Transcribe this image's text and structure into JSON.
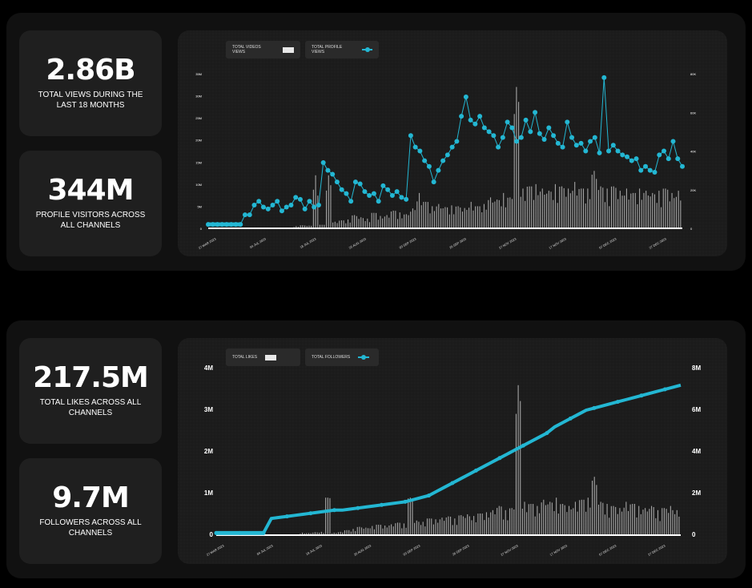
{
  "stats": {
    "total_views": {
      "value": "2.86B",
      "label": "TOTAL VIEWS DURING THE LAST  18 MONTHS"
    },
    "profile_visitors": {
      "value": "344M",
      "label": "PROFILE VISITORS ACROSS ALL CHANNELS"
    },
    "total_likes": {
      "value": "217.5M",
      "label": "TOTAL LIKES ACROSS ALL CHANNELS"
    },
    "followers": {
      "value": "9.7M",
      "label": "FOLLOWERS ACROSS ALL CHANNELS"
    }
  },
  "colors": {
    "accent": "#23b7d3",
    "bar": "#bdbdbd",
    "panel": "#111111",
    "card": "#1f1f1f"
  },
  "chart_data": [
    {
      "type": "bar",
      "legend": [
        "TOTAL VIDEOS VIEWS",
        "TOTAL PROFILE VIEWS"
      ],
      "legend_placement": "top-left",
      "grid": true,
      "y_ticks_left": [
        "35M",
        "30M",
        "25M",
        "20M",
        "15M",
        "10M",
        "5M",
        "0"
      ],
      "ylim_left": [
        0,
        35000000
      ],
      "y_ticks_right": [
        "80K",
        "60K",
        "40K",
        "20K",
        "0"
      ],
      "ylim_right": [
        0,
        80000
      ],
      "x_ticks": [
        "27 MAR 2023",
        "04 JUL 2023",
        "18 JUL 2023",
        "25 AUG 2023",
        "03 SEP 2023",
        "26 SEP 2023",
        "27 NOV 2023",
        "17 NOV 2023",
        "07 DEC 2023",
        "27 DEC 2023"
      ],
      "series": [
        {
          "name": "TOTAL VIDEOS VIEWS",
          "kind": "bar",
          "axis": "left",
          "values": [
            500000,
            700000,
            600000,
            12000000,
            800000,
            12000000,
            1500000,
            1800000,
            2000000,
            3000000,
            2500000,
            2200000,
            3500000,
            2800000,
            3000000,
            4000000,
            3600000,
            3200000,
            4500000,
            8000000,
            6000000,
            5000000,
            5500000,
            4800000,
            5200000,
            5000000,
            4600000,
            6000000,
            5000000,
            5500000,
            7000000,
            6500000,
            8000000,
            7000000,
            32000000,
            9000000,
            9500000,
            10000000,
            9000000,
            8500000,
            10000000,
            9500000,
            9000000,
            10500000,
            9000000,
            9000000,
            13000000,
            9500000,
            9000000,
            9500000,
            8500000,
            9000000,
            8000000,
            9000000,
            8500000,
            8000000,
            8500000,
            9000000,
            8000000,
            8500000
          ]
        },
        {
          "name": "TOTAL PROFILE VIEWS",
          "kind": "line",
          "axis": "right",
          "values": [
            2000,
            2000,
            2000,
            2000,
            2000,
            2000,
            2000,
            2000,
            7000,
            7000,
            12000,
            14000,
            11000,
            10000,
            12000,
            14000,
            9000,
            11000,
            12000,
            16000,
            15000,
            10000,
            14000,
            11000,
            12000,
            34000,
            30000,
            28000,
            24000,
            20000,
            18000,
            14000,
            24000,
            23000,
            19000,
            17000,
            18000,
            14000,
            22000,
            20000,
            17000,
            19000,
            16000,
            15000,
            48000,
            42000,
            40000,
            35000,
            32000,
            24000,
            30000,
            35000,
            38000,
            42000,
            45000,
            58000,
            68000,
            56000,
            54000,
            58000,
            52000,
            50000,
            48000,
            42000,
            47000,
            55000,
            52000,
            45000,
            47000,
            56000,
            50000,
            60000,
            49000,
            46000,
            52000,
            48000,
            44000,
            42000,
            55000,
            47000,
            43000,
            44000,
            40000,
            45000,
            47000,
            39000,
            78000,
            40000,
            43000,
            40000,
            38000,
            37000,
            35000,
            36000,
            30000,
            32000,
            30000,
            29000,
            38000,
            40000,
            36000,
            45000,
            36000,
            32000
          ]
        }
      ]
    },
    {
      "type": "bar",
      "legend": [
        "TOTAL LIKES",
        "TOTAL FOLLOWERS"
      ],
      "legend_placement": "top-left",
      "grid": true,
      "y_ticks_left": [
        "4M",
        "3M",
        "2M",
        "1M",
        "0"
      ],
      "ylim_left": [
        0,
        4000000
      ],
      "y_ticks_right": [
        "8M",
        "6M",
        "4M",
        "2M",
        "0"
      ],
      "ylim_right": [
        0,
        8000000
      ],
      "x_ticks": [
        "27 MAR 2023",
        "04 JUL 2023",
        "18 JUL 2023",
        "25 AUG 2023",
        "03 SEP 2023",
        "26 SEP 2023",
        "27 NOV 2023",
        "17 NOV 2023",
        "07 DEC 2023",
        "27 DEC 2023"
      ],
      "series": [
        {
          "name": "TOTAL LIKES",
          "kind": "bar",
          "axis": "left",
          "values": [
            60000,
            50000,
            70000,
            80000,
            900000,
            60000,
            80000,
            120000,
            150000,
            200000,
            180000,
            220000,
            250000,
            230000,
            260000,
            300000,
            280000,
            900000,
            350000,
            320000,
            400000,
            380000,
            420000,
            450000,
            400000,
            480000,
            500000,
            460000,
            520000,
            550000,
            600000,
            700000,
            600000,
            650000,
            3600000,
            800000,
            750000,
            700000,
            850000,
            800000,
            900000,
            750000,
            700000,
            800000,
            850000,
            900000,
            1400000,
            800000,
            750000,
            700000,
            650000,
            800000,
            750000,
            700000,
            650000,
            700000,
            600000,
            650000,
            700000,
            600000
          ]
        },
        {
          "name": "TOTAL FOLLOWERS",
          "kind": "line",
          "axis": "right",
          "values": [
            100000,
            100000,
            100000,
            100000,
            100000,
            100000,
            100000,
            800000,
            850000,
            900000,
            950000,
            1000000,
            1050000,
            1100000,
            1150000,
            1200000,
            1200000,
            1250000,
            1300000,
            1350000,
            1400000,
            1450000,
            1500000,
            1550000,
            1600000,
            1700000,
            1800000,
            1900000,
            2100000,
            2300000,
            2500000,
            2700000,
            2900000,
            3100000,
            3300000,
            3500000,
            3700000,
            3900000,
            4100000,
            4300000,
            4500000,
            4700000,
            4900000,
            5200000,
            5400000,
            5600000,
            5800000,
            6000000,
            6100000,
            6200000,
            6300000,
            6400000,
            6500000,
            6600000,
            6700000,
            6800000,
            6900000,
            7000000,
            7100000,
            7200000
          ]
        }
      ]
    }
  ]
}
